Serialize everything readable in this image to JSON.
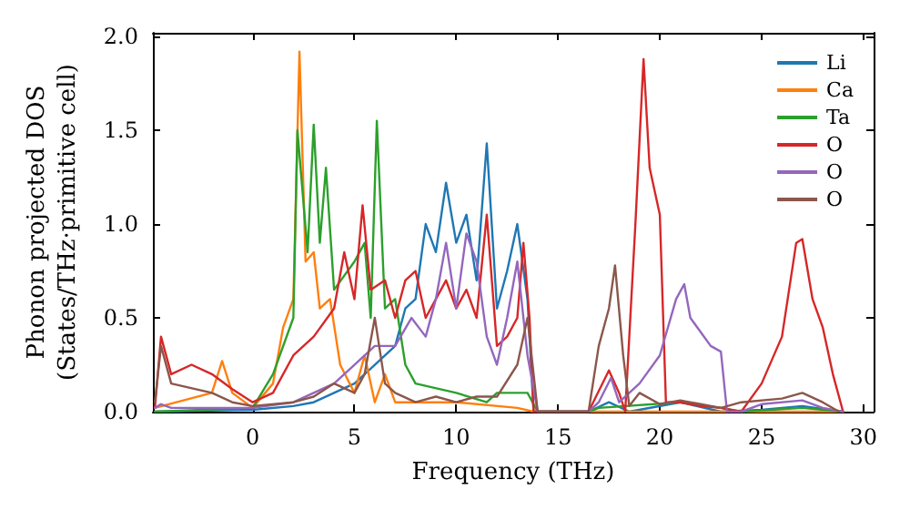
{
  "chart_data": {
    "type": "line",
    "xlabel": "Frequency (THz)",
    "ylabel": "Phonon projected DOS\n(States/THz·primitive cell)",
    "xlim": [
      -4.9,
      30.5
    ],
    "ylim": [
      0,
      2.02
    ],
    "xticks": [
      0,
      5,
      10,
      15,
      20,
      25,
      30
    ],
    "yticks": [
      {
        "value": 0,
        "label": "0.0"
      },
      {
        "value": 0.5,
        "label": "0.5"
      },
      {
        "value": 1,
        "label": "1.0"
      },
      {
        "value": 1.5,
        "label": "1.5"
      },
      {
        "value": 2,
        "label": "2.0"
      }
    ],
    "grid": false,
    "legend": "top right",
    "marker": "none",
    "line_style": "solid",
    "series": [
      {
        "name": "Li",
        "color": "#1f77b4",
        "x": [
          -4.8,
          0,
          2,
          3,
          5,
          6,
          7,
          7.5,
          8,
          8.5,
          9,
          9.5,
          10,
          10.5,
          11,
          11.5,
          12,
          12.5,
          13,
          13.5,
          13.8,
          16.5,
          17.5,
          18.5,
          21,
          23,
          25,
          27,
          29
        ],
        "values": [
          0,
          0.01,
          0.03,
          0.05,
          0.15,
          0.25,
          0.35,
          0.55,
          0.6,
          1.0,
          0.85,
          1.22,
          0.9,
          1.05,
          0.7,
          1.43,
          0.55,
          0.75,
          1.0,
          0.6,
          0,
          0,
          0.05,
          0,
          0.05,
          0,
          0.01,
          0.03,
          0
        ]
      },
      {
        "name": "Ca",
        "color": "#ff7f0e",
        "x": [
          -4.8,
          -2,
          -1.5,
          -1,
          0,
          1,
          1.5,
          2,
          2.3,
          2.6,
          3,
          3.3,
          3.8,
          4.3,
          5,
          5.5,
          6,
          6.5,
          7,
          10,
          13,
          13.8,
          29
        ],
        "values": [
          0.02,
          0.1,
          0.27,
          0.1,
          0.02,
          0.15,
          0.45,
          0.6,
          1.92,
          0.8,
          0.85,
          0.55,
          0.6,
          0.25,
          0.1,
          0.3,
          0.05,
          0.2,
          0.05,
          0.05,
          0.02,
          0,
          0
        ]
      },
      {
        "name": "Ta",
        "color": "#2ca02c",
        "x": [
          -4.8,
          0,
          1,
          2,
          2.2,
          2.7,
          3,
          3.3,
          3.6,
          4,
          5,
          5.5,
          5.8,
          6.1,
          6.5,
          7,
          7.5,
          8,
          10,
          11.5,
          12,
          13.5,
          14,
          16.5,
          17,
          21,
          23,
          24,
          27,
          29
        ],
        "values": [
          0,
          0.02,
          0.2,
          0.5,
          1.5,
          0.85,
          1.53,
          0.9,
          1.3,
          0.65,
          0.8,
          0.9,
          0.5,
          1.55,
          0.55,
          0.6,
          0.25,
          0.15,
          0.1,
          0.05,
          0.1,
          0.1,
          0,
          0,
          0.02,
          0.05,
          0.02,
          0,
          0.02,
          0
        ]
      },
      {
        "name": "O",
        "color": "#d62728",
        "x": [
          -4.8,
          -4.5,
          -4,
          -3,
          -2,
          -1,
          0,
          1,
          2,
          3,
          4,
          4.5,
          5,
          5.4,
          5.8,
          6.5,
          7,
          7.5,
          8,
          8.5,
          9,
          9.5,
          10,
          10.5,
          11,
          11.5,
          12,
          12.5,
          13,
          13.3,
          13.6,
          13.8,
          16.5,
          17.5,
          18,
          18.3,
          18.8,
          19.2,
          19.5,
          20,
          20.3,
          21,
          22,
          23,
          24,
          25,
          26,
          26.7,
          27,
          27.5,
          28,
          28.5,
          29
        ],
        "values": [
          0.02,
          0.4,
          0.2,
          0.25,
          0.2,
          0.12,
          0.05,
          0.1,
          0.3,
          0.4,
          0.55,
          0.85,
          0.6,
          1.1,
          0.65,
          0.7,
          0.5,
          0.7,
          0.75,
          0.5,
          0.6,
          0.7,
          0.55,
          0.65,
          0.5,
          1.05,
          0.35,
          0.4,
          0.5,
          0.9,
          0.5,
          0,
          0,
          0.22,
          0.1,
          0,
          1.0,
          1.88,
          1.3,
          1.05,
          0.05,
          0.05,
          0.03,
          0.02,
          0,
          0.15,
          0.4,
          0.9,
          0.92,
          0.6,
          0.45,
          0.2,
          0
        ]
      },
      {
        "name": "O",
        "color": "#9467bd",
        "x": [
          -4.8,
          -4.5,
          -4,
          0,
          2,
          3,
          4,
          5,
          6,
          7,
          7.8,
          8.5,
          9,
          9.5,
          10,
          10.5,
          11,
          11.5,
          12,
          12.5,
          13,
          13.5,
          14,
          16.5,
          17,
          17.6,
          18,
          19,
          20,
          20.8,
          21.2,
          21.5,
          22.5,
          23,
          23.3,
          24,
          25,
          27,
          28,
          29
        ],
        "values": [
          0.02,
          0.04,
          0.02,
          0.02,
          0.05,
          0.1,
          0.15,
          0.25,
          0.35,
          0.35,
          0.5,
          0.4,
          0.6,
          0.9,
          0.55,
          0.95,
          0.8,
          0.4,
          0.25,
          0.5,
          0.8,
          0.3,
          0,
          0,
          0.05,
          0.18,
          0.05,
          0.15,
          0.3,
          0.6,
          0.68,
          0.5,
          0.35,
          0.32,
          0,
          0,
          0.04,
          0.06,
          0.02,
          0
        ]
      },
      {
        "name": "O",
        "color": "#8c564b",
        "x": [
          -4.8,
          -4.5,
          -4,
          -2,
          -1,
          0,
          2,
          3,
          4,
          5,
          5.5,
          6,
          6.5,
          7,
          8,
          9,
          10,
          11,
          12,
          13,
          13.5,
          14,
          16.5,
          17,
          17.5,
          17.8,
          18.2,
          18.5,
          19,
          20,
          21,
          22,
          23,
          24,
          26,
          27,
          28,
          28.8
        ],
        "values": [
          0.05,
          0.35,
          0.15,
          0.1,
          0.05,
          0.03,
          0.05,
          0.08,
          0.15,
          0.1,
          0.2,
          0.5,
          0.15,
          0.1,
          0.05,
          0.08,
          0.05,
          0.08,
          0.08,
          0.25,
          0.5,
          0,
          0,
          0.35,
          0.55,
          0.78,
          0.3,
          0.03,
          0.1,
          0.04,
          0.06,
          0.04,
          0.02,
          0.05,
          0.07,
          0.1,
          0.05,
          0
        ]
      }
    ]
  }
}
